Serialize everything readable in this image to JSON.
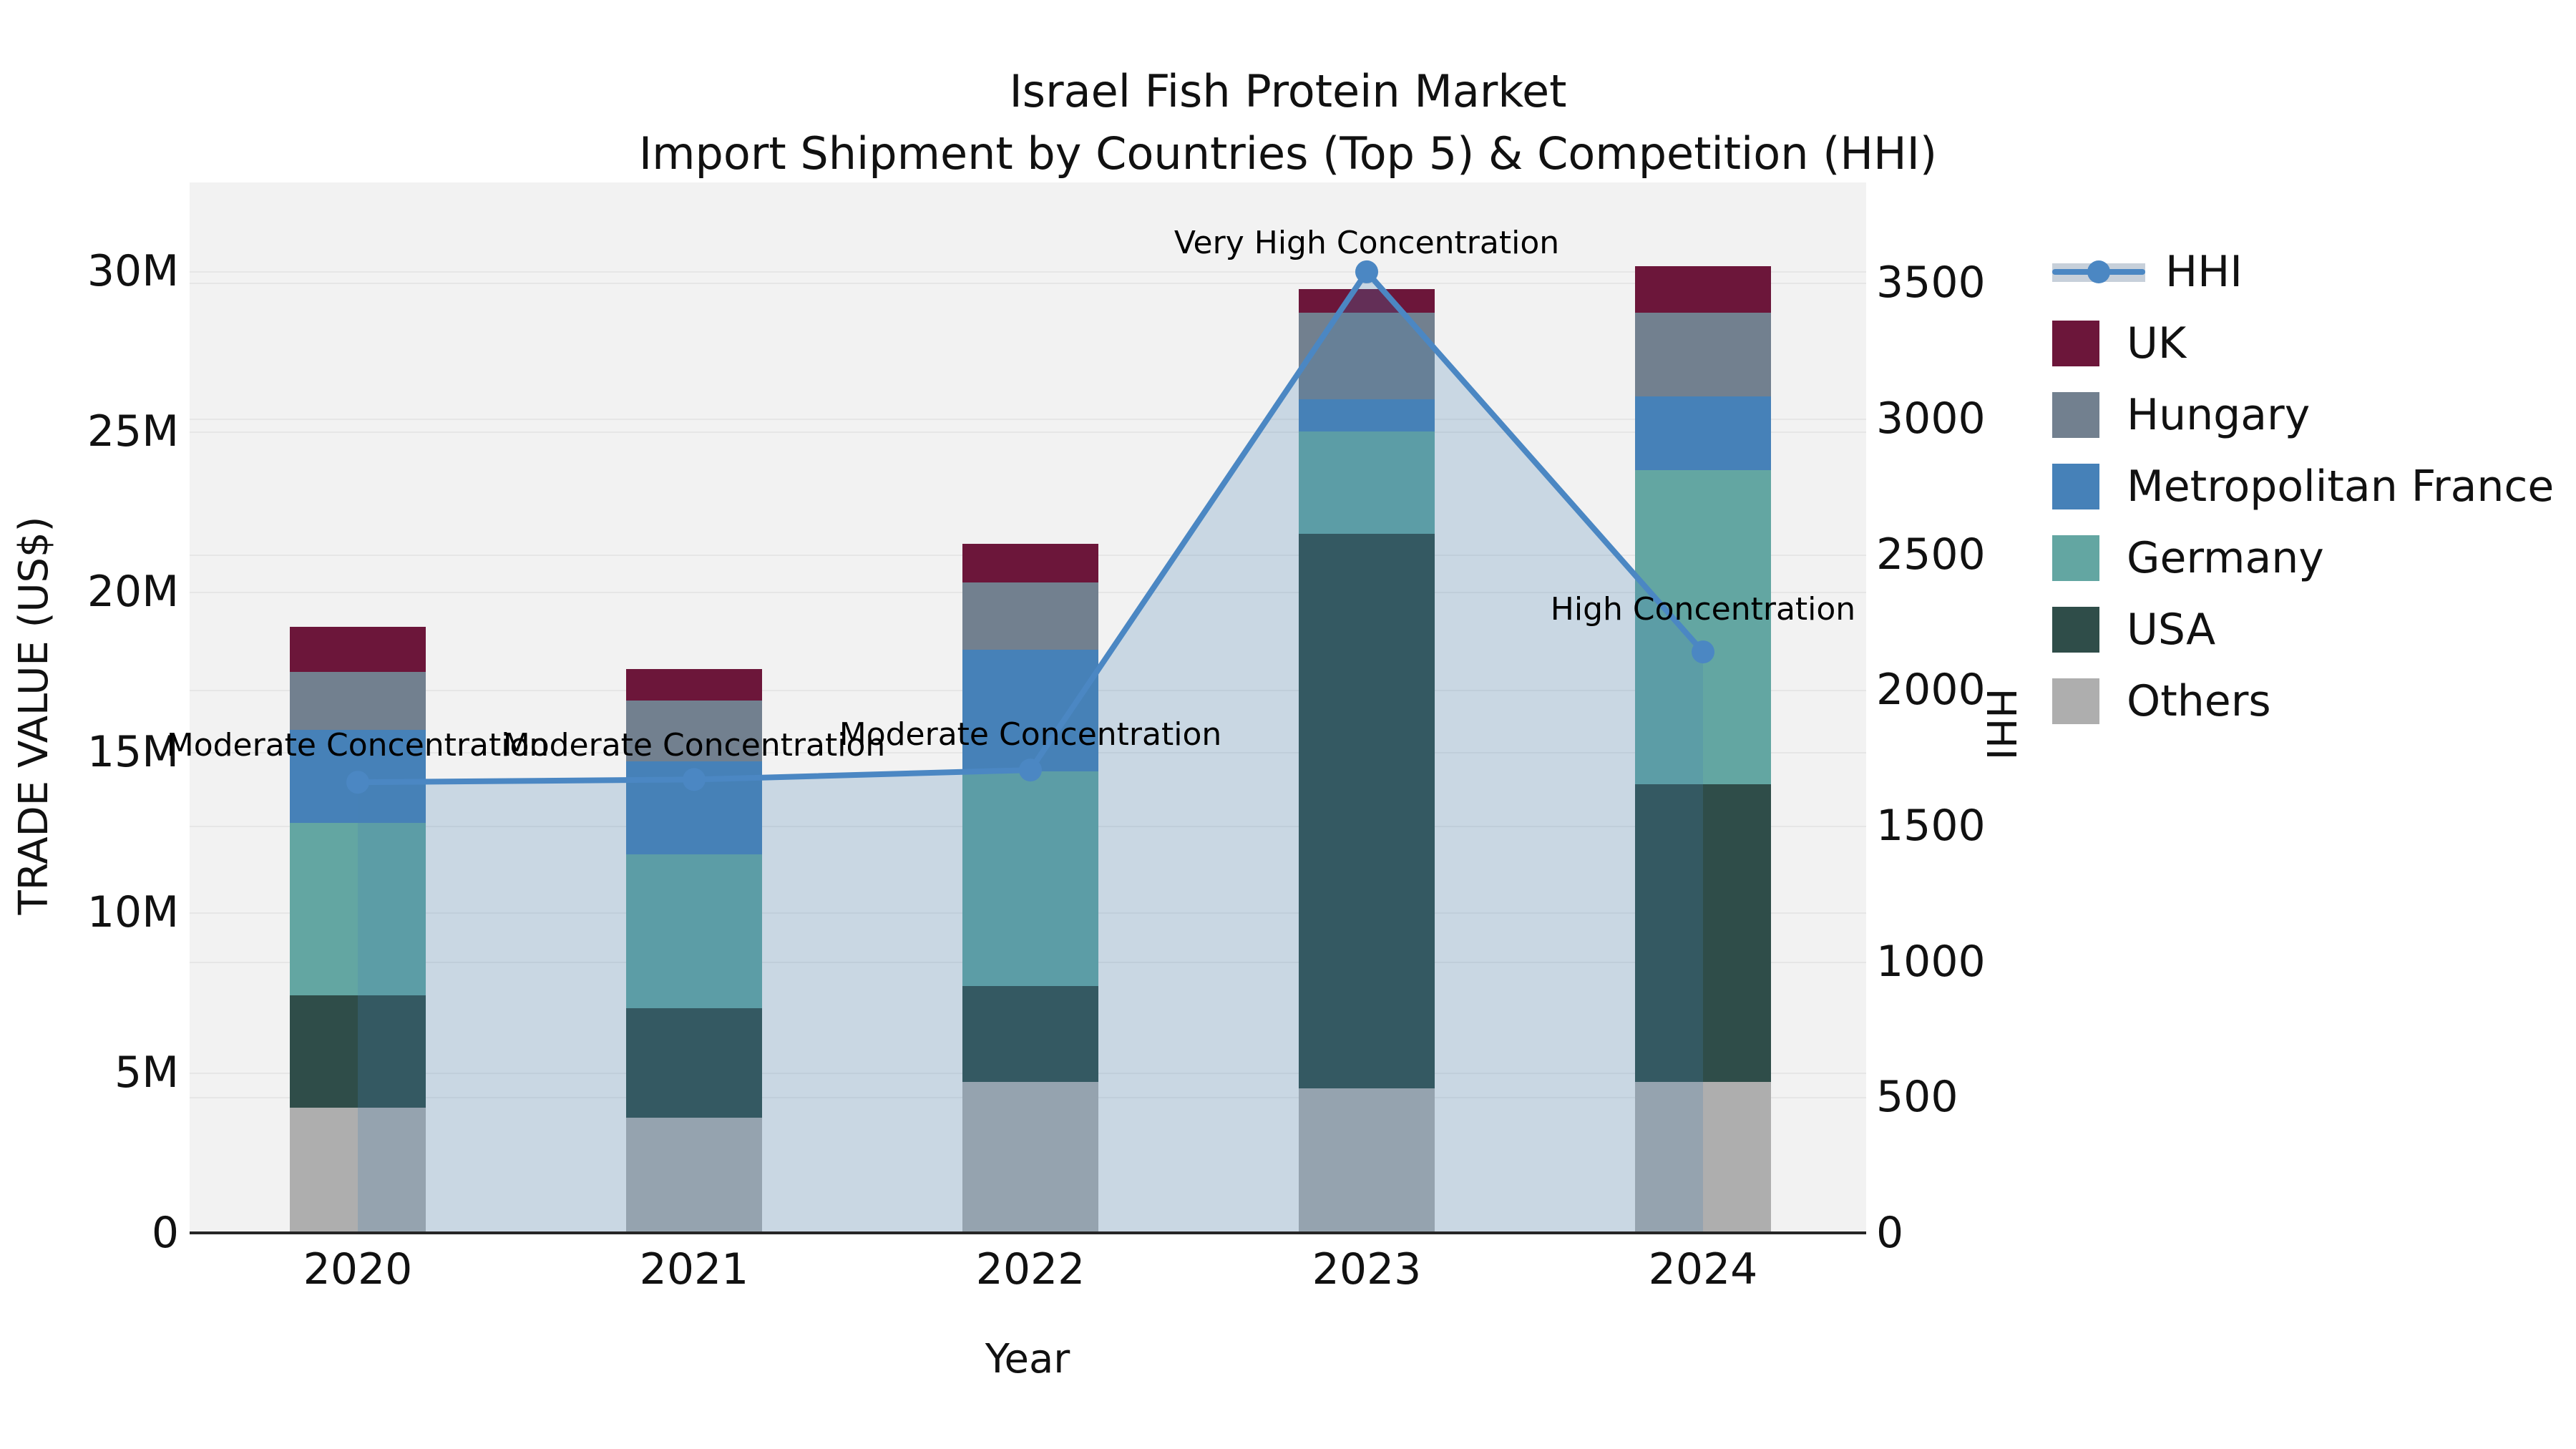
{
  "title": {
    "line1": "Israel Fish Protein Market",
    "line2": "Import Shipment by Countries (Top 5) & Competition (HHI)"
  },
  "axes": {
    "ylabel_left": "TRADE VALUE (US$)",
    "ylabel_right": "HHI",
    "xlabel": "Year",
    "yticks_left": [
      {
        "value": 0,
        "label": "0"
      },
      {
        "value": 5,
        "label": "5M"
      },
      {
        "value": 10,
        "label": "10M"
      },
      {
        "value": 15,
        "label": "15M"
      },
      {
        "value": 20,
        "label": "20M"
      },
      {
        "value": 25,
        "label": "25M"
      },
      {
        "value": 30,
        "label": "30M"
      }
    ],
    "yticks_right": [
      {
        "value": 0,
        "label": "0"
      },
      {
        "value": 500,
        "label": "500"
      },
      {
        "value": 1000,
        "label": "1000"
      },
      {
        "value": 1500,
        "label": "1500"
      },
      {
        "value": 2000,
        "label": "2000"
      },
      {
        "value": 2500,
        "label": "2500"
      },
      {
        "value": 3000,
        "label": "3000"
      },
      {
        "value": 3500,
        "label": "3500"
      }
    ]
  },
  "legend": {
    "items": [
      {
        "label": "HHI",
        "type": "line"
      },
      {
        "label": "UK",
        "type": "patch"
      },
      {
        "label": "Hungary",
        "type": "patch"
      },
      {
        "label": "Metropolitan France",
        "type": "patch"
      },
      {
        "label": "Germany",
        "type": "patch"
      },
      {
        "label": "USA",
        "type": "patch"
      },
      {
        "label": "Others",
        "type": "patch"
      }
    ]
  },
  "colors": {
    "plot_bg": "#f2f2f2",
    "gridline": "#e6e6e6",
    "spine": "#262626",
    "hhi_line": "#4b87c3",
    "hhi_area": "rgba(70,130,180,0.24)"
  },
  "chart_data": {
    "type": "bar",
    "subtype": "stacked-bars-with-hhi-line",
    "title": "Israel Fish Protein Market",
    "subtitle": "Import Shipment by Countries (Top 5) & Competition (HHI)",
    "xlabel": "Year",
    "ylabel_left": "TRADE VALUE (US$)",
    "ylabel_right": "HHI",
    "ylim_left_millions": [
      0,
      32.8
    ],
    "ylim_right_hhi": [
      0,
      3870
    ],
    "grid": true,
    "legend_position": "right",
    "categories": [
      "2020",
      "2021",
      "2022",
      "2023",
      "2024"
    ],
    "series": [
      {
        "name": "Others",
        "color": "#aeaeae",
        "values_millions": [
          3.9,
          3.6,
          4.7,
          4.5,
          4.7
        ]
      },
      {
        "name": "USA",
        "color": "#2f4d49",
        "values_millions": [
          3.5,
          3.4,
          3.0,
          17.3,
          9.3
        ]
      },
      {
        "name": "Germany",
        "color": "#63a6a2",
        "values_millions": [
          5.4,
          4.8,
          6.7,
          3.2,
          9.8
        ]
      },
      {
        "name": "Metropolitan France",
        "color": "#4681b8",
        "values_millions": [
          2.9,
          2.9,
          3.8,
          1.0,
          2.3
        ]
      },
      {
        "name": "Hungary",
        "color": "#72808f",
        "values_millions": [
          1.8,
          1.9,
          2.1,
          2.7,
          2.6
        ]
      },
      {
        "name": "UK",
        "color": "#6c163a",
        "values_millions": [
          1.4,
          1.0,
          1.2,
          0.75,
          1.45
        ]
      }
    ],
    "bar_totals_millions": [
      18.9,
      17.6,
      21.5,
      29.45,
      30.15
    ],
    "line": {
      "name": "HHI",
      "color": "#4b87c3",
      "area_fill": "rgba(70,130,180,0.24)",
      "values": [
        1660,
        1670,
        1705,
        3540,
        2140
      ]
    },
    "annotations": [
      {
        "text": "Moderate Concentration",
        "year": "2020",
        "y_hhi": 1795
      },
      {
        "text": "Moderate Concentration",
        "year": "2021",
        "y_hhi": 1795
      },
      {
        "text": "Moderate Concentration",
        "year": "2022",
        "y_hhi": 1834
      },
      {
        "text": "Very High Concentration",
        "year": "2023",
        "y_hhi": 3645
      },
      {
        "text": "High Concentration",
        "year": "2024",
        "y_hhi": 2296
      }
    ]
  }
}
